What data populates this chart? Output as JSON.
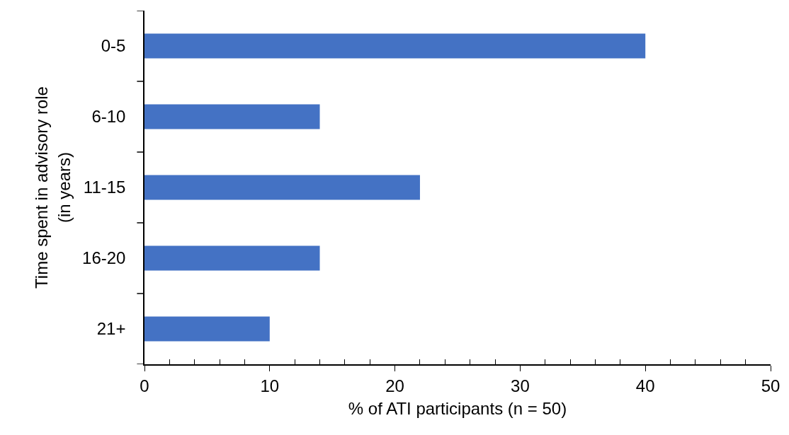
{
  "chart_data": {
    "type": "bar",
    "orientation": "horizontal",
    "xlabel": "% of ATI participants (n = 50)",
    "ylabel": "Time spent in advisory role\n(in years)",
    "categories": [
      "0-5",
      "6-10",
      "11-15",
      "16-20",
      "21+"
    ],
    "values": [
      40,
      14,
      22,
      14,
      10
    ],
    "color": "#4472c4",
    "xlim": [
      0,
      50
    ],
    "xticks": [
      0,
      {
        "value": 2,
        "label": null
      },
      {
        "value": 4,
        "label": null
      },
      {
        "value": 6,
        "label": null
      },
      {
        "value": 8,
        "label": null
      },
      10,
      {
        "value": 12,
        "label": null
      },
      {
        "value": 14,
        "label": null
      },
      {
        "value": 16,
        "label": null
      },
      {
        "value": 18,
        "label": null
      },
      20,
      {
        "value": 22,
        "label": null
      },
      {
        "value": 24,
        "label": null
      },
      {
        "value": 26,
        "label": null
      },
      {
        "value": 28,
        "label": null
      },
      30,
      {
        "value": 32,
        "label": null
      },
      {
        "value": 34,
        "label": null
      },
      {
        "value": 36,
        "label": null
      },
      {
        "value": 38,
        "label": null
      },
      40,
      {
        "value": 42,
        "label": null
      },
      {
        "value": 44,
        "label": null
      },
      {
        "value": 46,
        "label": null
      },
      {
        "value": 48,
        "label": null
      },
      50
    ],
    "grid": false
  }
}
